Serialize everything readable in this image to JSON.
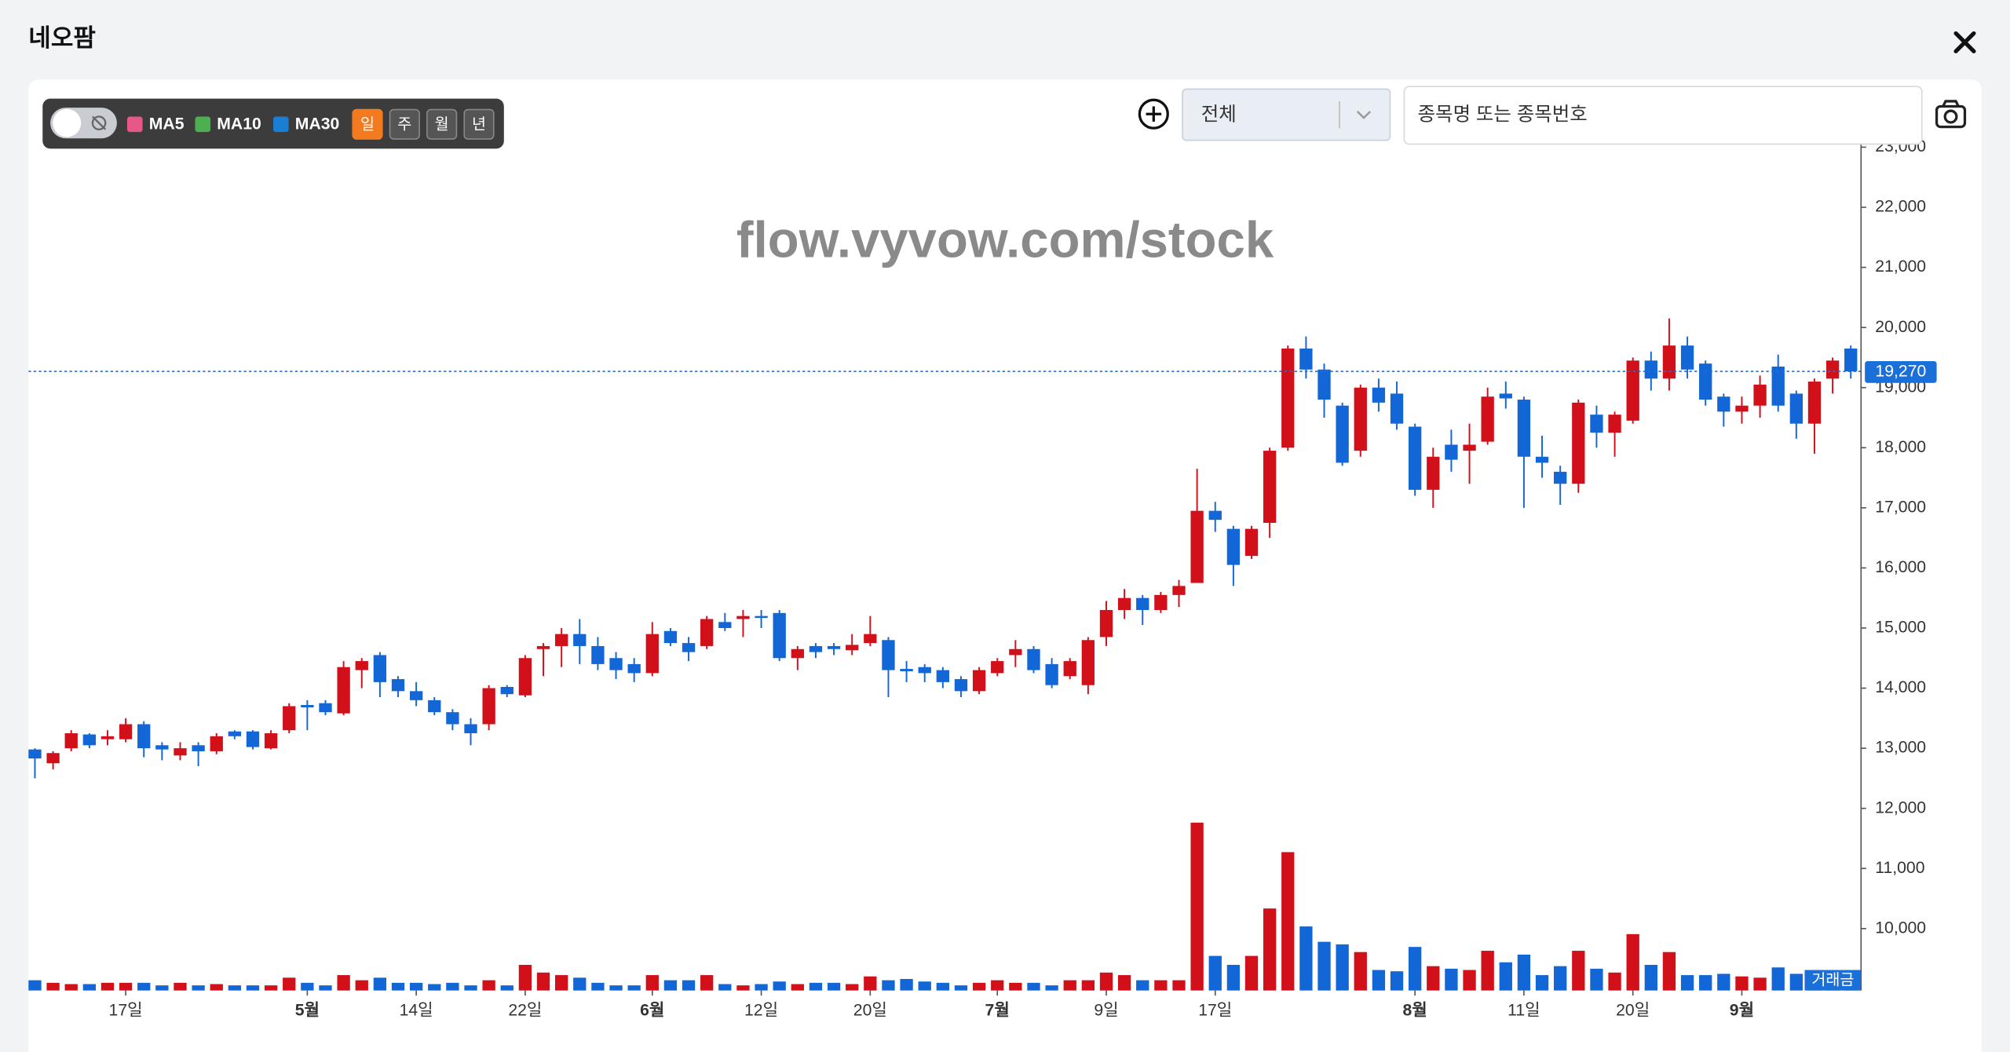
{
  "chart_data": {
    "type": "candlestick",
    "title": "네오팜",
    "watermark": "flow.vyvow.com/stock",
    "ma_legend": [
      {
        "name": "MA5",
        "color": "#e8578a"
      },
      {
        "name": "MA10",
        "color": "#4caf50"
      },
      {
        "name": "MA30",
        "color": "#1a7fd4"
      }
    ],
    "periods": [
      "일",
      "주",
      "월",
      "년"
    ],
    "selected_period": 0,
    "filter": "전체",
    "search_placeholder": "종목명 또는 종목번호",
    "up_color": "#d2101a",
    "down_color": "#1366d6",
    "open": [
      12980,
      12750,
      13000,
      13230,
      13150,
      13150,
      13400,
      13050,
      12880,
      13050,
      12950,
      13280,
      13280,
      13000,
      13300,
      13720,
      13750,
      13580,
      14300,
      14550,
      14150,
      13950,
      13800,
      13600,
      13400,
      13400,
      14020,
      13880,
      14650,
      14700,
      14900,
      14700,
      14500,
      14400,
      14250,
      14950,
      14750,
      14700,
      15100,
      15150,
      15200,
      15250,
      14500,
      14700,
      14700,
      14630,
      14750,
      14800,
      14320,
      14350,
      14300,
      14150,
      13950,
      14250,
      14550,
      14650,
      14400,
      14200,
      14050,
      14850,
      15300,
      15500,
      15300,
      15550,
      15750,
      16950,
      16650,
      16200,
      16750,
      18000,
      19650,
      19300,
      18700,
      17950,
      19000,
      18900,
      18350,
      17300,
      18050,
      17950,
      18100,
      18900,
      18800,
      17850,
      17600,
      17400,
      18550,
      18250,
      18450,
      19450,
      19150,
      19700,
      19400,
      18850,
      18600,
      18700,
      19350,
      18900,
      18400,
      19150,
      19650
    ],
    "high": [
      13000,
      12950,
      13300,
      13250,
      13300,
      13500,
      13450,
      13100,
      13100,
      13100,
      13250,
      13300,
      13300,
      13300,
      13750,
      13800,
      13800,
      14450,
      14500,
      14600,
      14200,
      14100,
      13850,
      13650,
      13500,
      14050,
      14050,
      14550,
      14750,
      15000,
      15150,
      14850,
      14600,
      14500,
      15100,
      15000,
      14850,
      15200,
      15250,
      15300,
      15300,
      15300,
      14700,
      14750,
      14750,
      14900,
      15200,
      14850,
      14450,
      14400,
      14350,
      14200,
      14350,
      14500,
      14800,
      14700,
      14500,
      14500,
      14850,
      15450,
      15650,
      15550,
      15600,
      15800,
      17650,
      17100,
      16700,
      16700,
      18000,
      19700,
      19850,
      19400,
      18750,
      19050,
      19150,
      19100,
      18400,
      18000,
      18300,
      18400,
      19000,
      19100,
      18850,
      18200,
      17700,
      18800,
      18700,
      18600,
      19500,
      19600,
      20150,
      19850,
      19450,
      18900,
      18850,
      19200,
      19550,
      18950,
      19150,
      19500,
      19700
    ],
    "low": [
      12500,
      12650,
      12950,
      13000,
      13050,
      13100,
      12850,
      12800,
      12800,
      12700,
      12900,
      13150,
      12980,
      12980,
      13250,
      13300,
      13550,
      13550,
      14000,
      13850,
      13850,
      13700,
      13550,
      13300,
      13050,
      13300,
      13850,
      13850,
      14200,
      14350,
      14400,
      14300,
      14150,
      14100,
      14200,
      14700,
      14450,
      14650,
      14950,
      14850,
      15000,
      14450,
      14300,
      14500,
      14550,
      14550,
      14700,
      13850,
      14100,
      14100,
      14000,
      13850,
      13900,
      14200,
      14350,
      14250,
      14000,
      14150,
      13900,
      14700,
      15150,
      15050,
      15250,
      15350,
      15750,
      16600,
      15700,
      16150,
      16500,
      17950,
      19150,
      18500,
      17700,
      17850,
      18600,
      18300,
      17200,
      17000,
      17600,
      17400,
      18050,
      18650,
      17000,
      17500,
      17050,
      17250,
      18000,
      17850,
      18400,
      18950,
      18950,
      19150,
      18700,
      18350,
      18400,
      18500,
      18600,
      18150,
      17900,
      18900,
      19150
    ],
    "close": [
      12830,
      12920,
      13250,
      13050,
      13200,
      13400,
      13000,
      12980,
      13000,
      12950,
      13200,
      13200,
      13020,
      13250,
      13700,
      13680,
      13600,
      14350,
      14450,
      14100,
      13950,
      13800,
      13600,
      13400,
      13250,
      14000,
      13900,
      14500,
      14700,
      14900,
      14700,
      14400,
      14300,
      14250,
      14900,
      14750,
      14600,
      15150,
      15000,
      15200,
      15180,
      14500,
      14650,
      14600,
      14650,
      14720,
      14900,
      14300,
      14280,
      14250,
      14100,
      13950,
      14300,
      14450,
      14650,
      14300,
      14050,
      14450,
      14800,
      15300,
      15500,
      15300,
      15550,
      15700,
      16950,
      16800,
      16050,
      16650,
      17950,
      19650,
      19300,
      18800,
      17750,
      19000,
      18750,
      18400,
      17300,
      17850,
      17800,
      18050,
      18850,
      18820,
      17850,
      17750,
      17400,
      18750,
      18250,
      18550,
      19450,
      19150,
      19700,
      19300,
      18800,
      18600,
      18700,
      19050,
      18700,
      18400,
      19100,
      19450,
      19270
    ],
    "volume": [
      8,
      6,
      5,
      5,
      6,
      6,
      6,
      4,
      6,
      4,
      5,
      4,
      4,
      4,
      10,
      6,
      4,
      12,
      8,
      10,
      6,
      6,
      5,
      6,
      4,
      8,
      4,
      20,
      14,
      12,
      10,
      6,
      4,
      4,
      12,
      8,
      8,
      12,
      5,
      4,
      5,
      7,
      5,
      6,
      6,
      5,
      11,
      8,
      9,
      7,
      6,
      4,
      6,
      8,
      6,
      6,
      4,
      8,
      8,
      14,
      12,
      8,
      8,
      8,
      131,
      27,
      20,
      27,
      64,
      108,
      50,
      38,
      36,
      30,
      16,
      15,
      34,
      19,
      17,
      16,
      31,
      22,
      28,
      12,
      19,
      31,
      17,
      14,
      44,
      20,
      30,
      12,
      12,
      13,
      11,
      10,
      18,
      13,
      14,
      12,
      11
    ],
    "volume_label": "거래금",
    "ylim": [
      8970,
      23210
    ],
    "yticks": [
      {
        "value": 10000,
        "label": "10,000"
      },
      {
        "value": 11000,
        "label": "11,000"
      },
      {
        "value": 12000,
        "label": "12,000"
      },
      {
        "value": 13000,
        "label": "13,000"
      },
      {
        "value": 14000,
        "label": "14,000"
      },
      {
        "value": 15000,
        "label": "15,000"
      },
      {
        "value": 16000,
        "label": "16,000"
      },
      {
        "value": 17000,
        "label": "17,000"
      },
      {
        "value": 18000,
        "label": "18,000"
      },
      {
        "value": 19000,
        "label": "19,000"
      },
      {
        "value": 20000,
        "label": "20,000"
      },
      {
        "value": 21000,
        "label": "21,000"
      },
      {
        "value": 22000,
        "label": "22,000"
      },
      {
        "value": 23000,
        "label": "23,000"
      }
    ],
    "xticks": [
      {
        "value": 5,
        "label": "17일"
      },
      {
        "value": 15,
        "label": "5월",
        "bold": true
      },
      {
        "value": 21,
        "label": "14일"
      },
      {
        "value": 27,
        "label": "22일"
      },
      {
        "value": 34,
        "label": "6월",
        "bold": true
      },
      {
        "value": 40,
        "label": "12일"
      },
      {
        "value": 46,
        "label": "20일"
      },
      {
        "value": 53,
        "label": "7월",
        "bold": true
      },
      {
        "value": 59,
        "label": "9일"
      },
      {
        "value": 65,
        "label": "17일"
      },
      {
        "value": 76,
        "label": "8월",
        "bold": true
      },
      {
        "value": 82,
        "label": "11일"
      },
      {
        "value": 88,
        "label": "20일"
      },
      {
        "value": 94,
        "label": "9월",
        "bold": true
      }
    ],
    "last_price": {
      "value": 19270,
      "label": "19,270"
    }
  }
}
